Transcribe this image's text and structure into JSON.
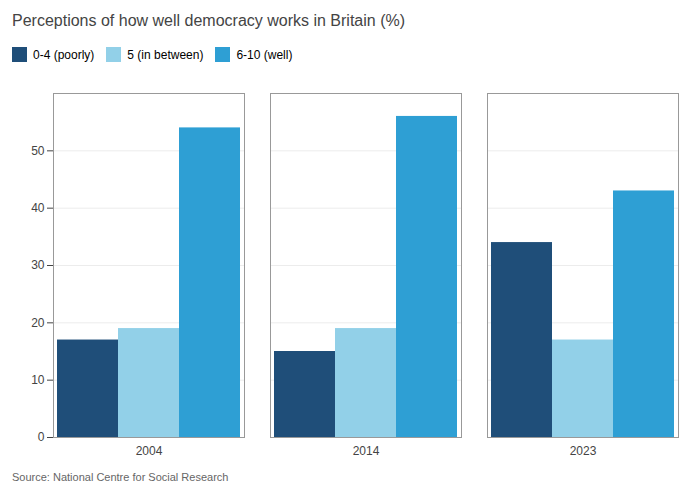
{
  "chart_data": {
    "type": "bar",
    "title": "Perceptions of how well democracy works in Britain (%)",
    "source": "Source: National Centre for Social Research",
    "categories": [
      "2004",
      "2014",
      "2023"
    ],
    "series": [
      {
        "name": "0-4 (poorly)",
        "color": "#1f4e79",
        "values": [
          17,
          15,
          34
        ]
      },
      {
        "name": "5 (in between)",
        "color": "#92d0e8",
        "values": [
          19,
          19,
          17
        ]
      },
      {
        "name": "6-10 (well)",
        "color": "#2e9fd4",
        "values": [
          54,
          56,
          43
        ]
      }
    ],
    "ylim": [
      0,
      60
    ],
    "yticks": [
      0,
      10,
      20,
      30,
      40,
      50
    ],
    "grid": true,
    "legend": "top"
  }
}
